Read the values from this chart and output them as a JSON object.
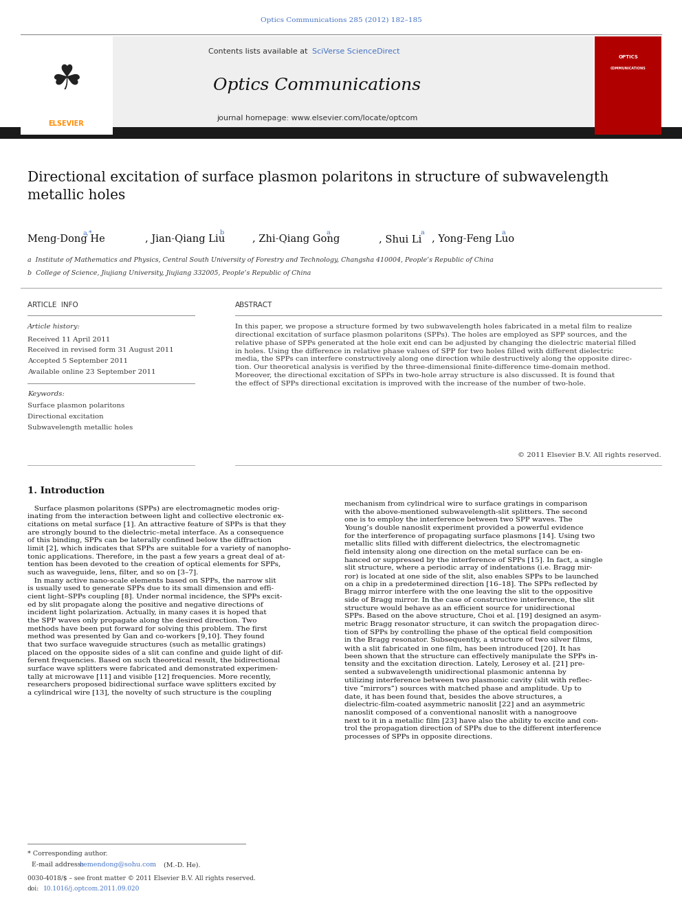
{
  "page_width": 9.92,
  "page_height": 13.23,
  "bg_color": "#ffffff",
  "header_journal_line": "Optics Communications 285 (2012) 182–185",
  "header_journal_color": "#4472c4",
  "journal_title": "Optics Communications",
  "contents_text": "Contents lists available at ",
  "sciverse_text": "SciVerse ScienceDirect",
  "homepage_text": "journal homepage: www.elsevier.com/locate/optcom",
  "article_title": "Directional excitation of surface plasmon polaritons in structure of subwavelength\nmetallic holes",
  "affil_a": "a  Institute of Mathematics and Physics, Central South University of Forestry and Technology, Changsha 410004, People’s Republic of China",
  "affil_b": "b  College of Science, Jiujiang University, Jiujiang 332005, People’s Republic of China",
  "article_info_header": "ARTICLE  INFO",
  "abstract_header": "ABSTRACT",
  "article_history_label": "Article history:",
  "received": "Received 11 April 2011",
  "received_revised": "Received in revised form 31 August 2011",
  "accepted": "Accepted 5 September 2011",
  "available": "Available online 23 September 2011",
  "keywords_label": "Keywords:",
  "keyword1": "Surface plasmon polaritons",
  "keyword2": "Directional excitation",
  "keyword3": "Subwavelength metallic holes",
  "abstract_text": "In this paper, we propose a structure formed by two subwavelength holes fabricated in a metal film to realize\ndirectional excitation of surface plasmon polaritons (SPPs). The holes are employed as SPP sources, and the\nrelative phase of SPPs generated at the hole exit end can be adjusted by changing the dielectric material filled\nin holes. Using the difference in relative phase values of SPP for two holes filled with different dielectric\nmedia, the SPPs can interfere constructively along one direction while destructively along the opposite direc-\ntion. Our theoretical analysis is verified by the three-dimensional finite-difference time-domain method.\nMoreover, the directional excitation of SPPs in two-hole array structure is also discussed. It is found that\nthe effect of SPPs directional excitation is improved with the increase of the number of two-hole.",
  "copyright": "© 2011 Elsevier B.V. All rights reserved.",
  "intro_header": "1. Introduction",
  "intro_col1": "   Surface plasmon polaritons (SPPs) are electromagnetic modes orig-\ninating from the interaction between light and collective electronic ex-\ncitations on metal surface [1]. An attractive feature of SPPs is that they\nare strongly bound to the dielectric–metal interface. As a consequence\nof this binding, SPPs can be laterally confined below the diffraction\nlimit [2], which indicates that SPPs are suitable for a variety of nanopho-\ntonic applications. Therefore, in the past a few years a great deal of at-\ntention has been devoted to the creation of optical elements for SPPs,\nsuch as waveguide, lens, filter, and so on [3–7].\n   In many active nano-scale elements based on SPPs, the narrow slit\nis usually used to generate SPPs due to its small dimension and effi-\ncient light–SPPs coupling [8]. Under normal incidence, the SPPs excit-\ned by slit propagate along the positive and negative directions of\nincident light polarization. Actually, in many cases it is hoped that\nthe SPP waves only propagate along the desired direction. Two\nmethods have been put forward for solving this problem. The first\nmethod was presented by Gan and co-workers [9,10]. They found\nthat two surface waveguide structures (such as metallic gratings)\nplaced on the opposite sides of a slit can confine and guide light of dif-\nferent frequencies. Based on such theoretical result, the bidirectional\nsurface wave splitters were fabricated and demonstrated experimen-\ntally at microwave [11] and visible [12] frequencies. More recently,\nresearchers proposed bidirectional surface wave splitters excited by\na cylindrical wire [13], the novelty of such structure is the coupling",
  "intro_col2": "mechanism from cylindrical wire to surface gratings in comparison\nwith the above-mentioned subwavelength-slit splitters. The second\none is to employ the interference between two SPP waves. The\nYoung’s double nanoslit experiment provided a powerful evidence\nfor the interference of propagating surface plasmons [14]. Using two\nmetallic slits filled with different dielectrics, the electromagnetic\nfield intensity along one direction on the metal surface can be en-\nhanced or suppressed by the interference of SPPs [15]. In fact, a single\nslit structure, where a periodic array of indentations (i.e. Bragg mir-\nror) is located at one side of the slit, also enables SPPs to be launched\non a chip in a predetermined direction [16–18]. The SPPs reflected by\nBragg mirror interfere with the one leaving the slit to the oppositive\nside of Bragg mirror. In the case of constructive interference, the slit\nstructure would behave as an efficient source for unidirectional\nSPPs. Based on the above structure, Choi et al. [19] designed an asym-\nmetric Bragg resonator structure, it can switch the propagation direc-\ntion of SPPs by controlling the phase of the optical field composition\nin the Bragg resonator. Subsequently, a structure of two silver films,\nwith a slit fabricated in one film, has been introduced [20]. It has\nbeen shown that the structure can effectively manipulate the SPPs in-\ntensity and the excitation direction. Lately, Lerosey et al. [21] pre-\nsented a subwavelength unidirectional plasmonic antenna by\nutilizing interference between two plasmonic cavity (slit with reflec-\ntive “mirrors”) sources with matched phase and amplitude. Up to\ndate, it has been found that, besides the above structures, a\ndielectric-film-coated asymmetric nanoslit [22] and an asymmetric\nnanoslit composed of a conventional nanoslit with a nanogroove\nnext to it in a metallic film [23] have also the ability to excite and con-\ntrol the propagation direction of SPPs due to the different interference\nprocesses of SPPs in opposite directions.",
  "link_color": "#4472c4",
  "elsevier_orange": "#FF8C00",
  "header_bg": "#efefef",
  "dark_bar_color": "#1a1a1a",
  "elsevier_red": "#b10000"
}
